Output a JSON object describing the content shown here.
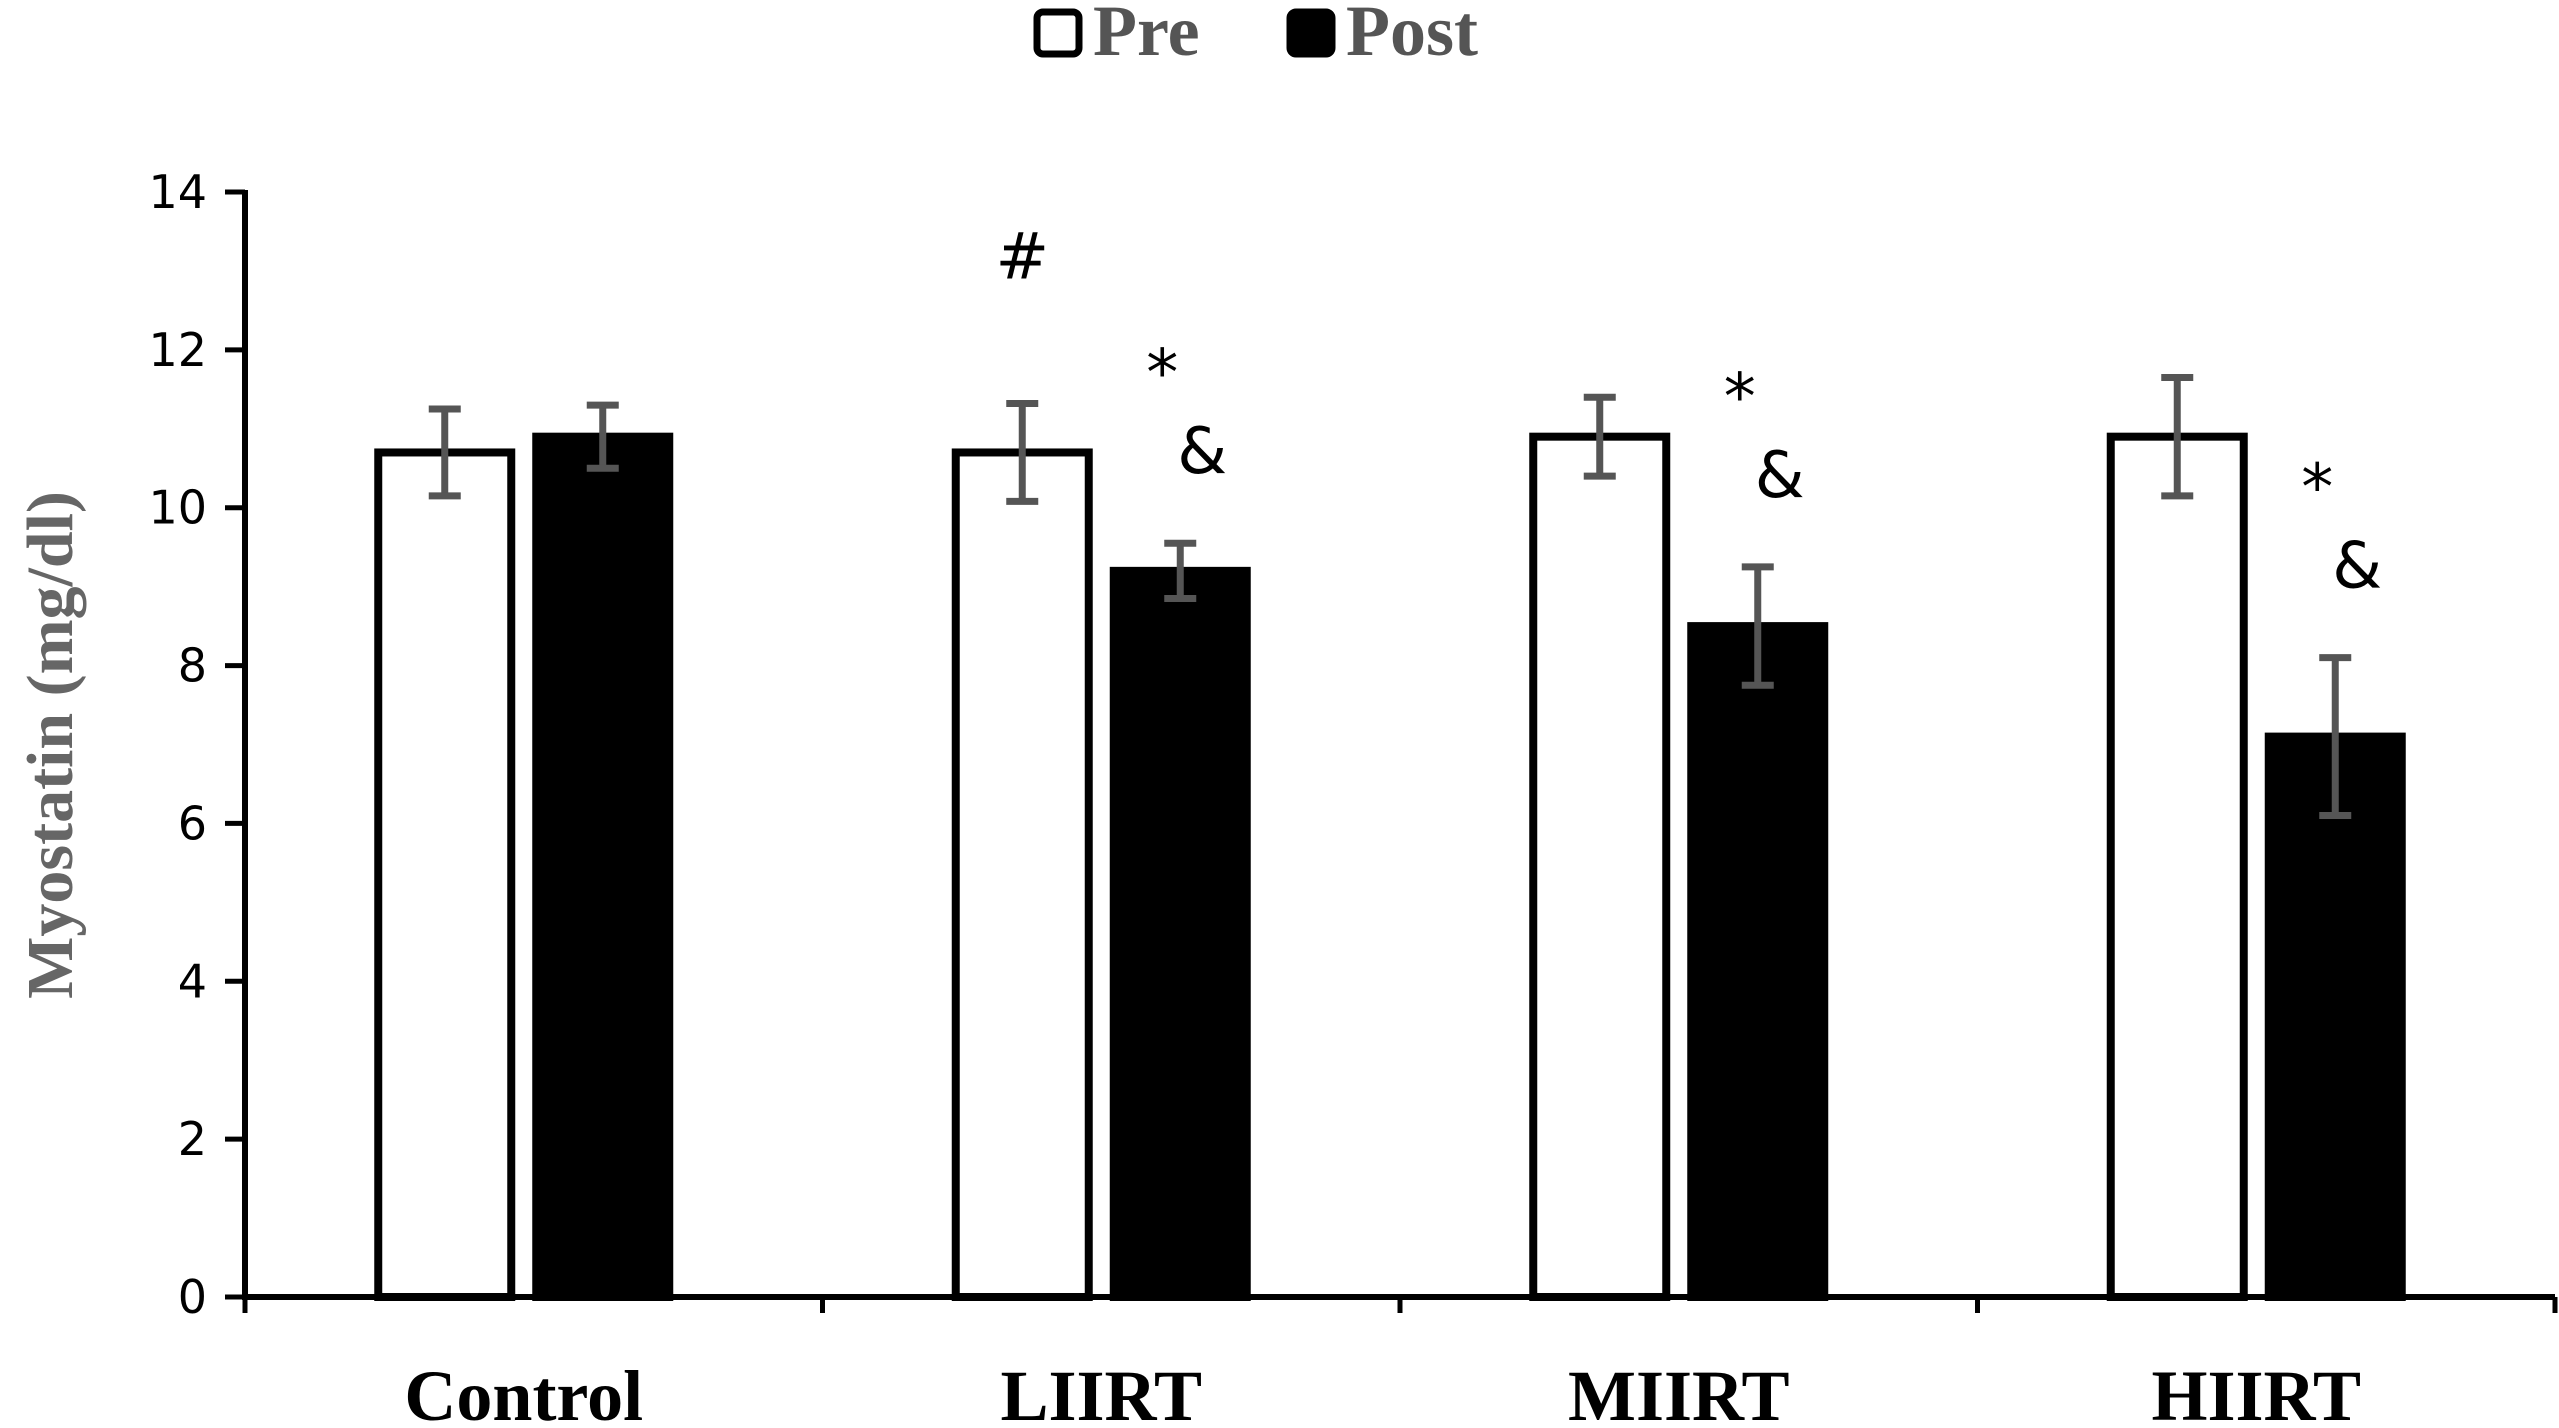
{
  "chart_data": {
    "type": "bar",
    "categories": [
      "Control",
      "LIIRT",
      "MIIRT",
      "HIIRT"
    ],
    "series": [
      {
        "name": "Pre",
        "fill": "#ffffff",
        "values": [
          10.7,
          10.7,
          10.9,
          10.9
        ],
        "errors": [
          0.55,
          0.62,
          0.5,
          0.75
        ]
      },
      {
        "name": "Post",
        "fill": "#000000",
        "values": [
          10.9,
          9.2,
          8.5,
          7.1
        ],
        "errors": [
          0.4,
          0.35,
          0.75,
          1.0
        ]
      }
    ],
    "ylabel": "Myostatin (mg/dl)",
    "xlabel": "",
    "ylim": [
      0,
      14
    ],
    "yticks": [
      0,
      2,
      4,
      6,
      8,
      10,
      12,
      14
    ],
    "legend_position": "top-center",
    "grid": false,
    "annotations": [
      {
        "category": "LIIRT",
        "series": "Pre",
        "marks": [
          "#"
        ]
      },
      {
        "category": "LIIRT",
        "series": "Post",
        "marks": [
          "*",
          "&"
        ]
      },
      {
        "category": "MIIRT",
        "series": "Post",
        "marks": [
          "*",
          "&"
        ]
      },
      {
        "category": "HIIRT",
        "series": "Post",
        "marks": [
          "*",
          "&"
        ]
      }
    ],
    "colors": {
      "bar_outline": "#000000",
      "error_bar": "#555555",
      "axis": "#000000"
    }
  }
}
